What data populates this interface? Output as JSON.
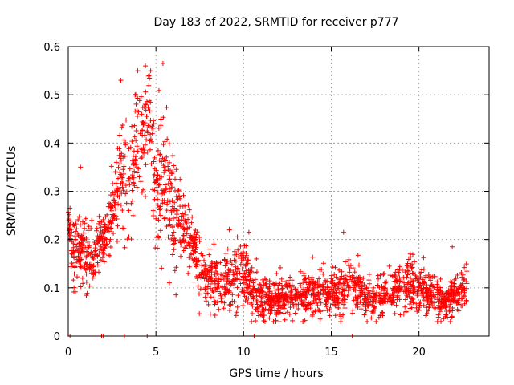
{
  "chart_data": {
    "type": "scatter",
    "title": "Day 183 of 2022, SRMTID for receiver p777",
    "xlabel": "GPS time / hours",
    "ylabel": "SRMTID / TECUs",
    "xlim": [
      0,
      24
    ],
    "ylim": [
      0,
      0.6
    ],
    "xticks": [
      0,
      5,
      10,
      15,
      20
    ],
    "yticks": [
      0,
      0.1,
      0.2,
      0.3,
      0.4,
      0.5,
      0.6
    ],
    "xtick_labels": [
      "0",
      "5",
      "10",
      "15",
      "20"
    ],
    "ytick_labels": [
      "0",
      "0.1",
      "0.2",
      "0.3",
      "0.4",
      "0.5",
      "0.6"
    ],
    "grid": true,
    "marker": "plus",
    "color": "#ff0000",
    "series": [
      {
        "name": "SRMTID",
        "envelope": [
          {
            "x": 0.0,
            "y": 0.25,
            "spread": 0.02
          },
          {
            "x": 0.3,
            "y": 0.16,
            "spread": 0.06
          },
          {
            "x": 0.7,
            "y": 0.18,
            "spread": 0.07
          },
          {
            "x": 1.2,
            "y": 0.15,
            "spread": 0.06
          },
          {
            "x": 1.7,
            "y": 0.19,
            "spread": 0.05
          },
          {
            "x": 2.2,
            "y": 0.21,
            "spread": 0.05
          },
          {
            "x": 2.6,
            "y": 0.25,
            "spread": 0.08
          },
          {
            "x": 3.0,
            "y": 0.36,
            "spread": 0.12
          },
          {
            "x": 3.4,
            "y": 0.3,
            "spread": 0.1
          },
          {
            "x": 3.8,
            "y": 0.38,
            "spread": 0.12
          },
          {
            "x": 4.2,
            "y": 0.42,
            "spread": 0.1
          },
          {
            "x": 4.6,
            "y": 0.45,
            "spread": 0.1
          },
          {
            "x": 5.0,
            "y": 0.3,
            "spread": 0.1
          },
          {
            "x": 5.4,
            "y": 0.32,
            "spread": 0.13
          },
          {
            "x": 5.9,
            "y": 0.27,
            "spread": 0.1
          },
          {
            "x": 6.4,
            "y": 0.22,
            "spread": 0.08
          },
          {
            "x": 7.0,
            "y": 0.2,
            "spread": 0.06
          },
          {
            "x": 7.5,
            "y": 0.13,
            "spread": 0.05
          },
          {
            "x": 8.5,
            "y": 0.11,
            "spread": 0.05
          },
          {
            "x": 9.5,
            "y": 0.12,
            "spread": 0.06
          },
          {
            "x": 10.0,
            "y": 0.13,
            "spread": 0.06
          },
          {
            "x": 10.5,
            "y": 0.09,
            "spread": 0.05
          },
          {
            "x": 11.5,
            "y": 0.08,
            "spread": 0.04
          },
          {
            "x": 13.0,
            "y": 0.08,
            "spread": 0.04
          },
          {
            "x": 14.5,
            "y": 0.09,
            "spread": 0.04
          },
          {
            "x": 15.5,
            "y": 0.09,
            "spread": 0.04
          },
          {
            "x": 16.0,
            "y": 0.11,
            "spread": 0.05
          },
          {
            "x": 17.0,
            "y": 0.08,
            "spread": 0.04
          },
          {
            "x": 18.5,
            "y": 0.09,
            "spread": 0.04
          },
          {
            "x": 19.5,
            "y": 0.11,
            "spread": 0.05
          },
          {
            "x": 20.5,
            "y": 0.09,
            "spread": 0.04
          },
          {
            "x": 21.5,
            "y": 0.07,
            "spread": 0.03
          },
          {
            "x": 22.8,
            "y": 0.1,
            "spread": 0.04
          }
        ],
        "sample_count": 2200,
        "outliers": [
          {
            "x": 4.4,
            "y": 0.56
          },
          {
            "x": 5.4,
            "y": 0.565
          },
          {
            "x": 3.0,
            "y": 0.53
          },
          {
            "x": 4.7,
            "y": 0.55
          },
          {
            "x": 0.7,
            "y": 0.35
          },
          {
            "x": 15.7,
            "y": 0.215
          },
          {
            "x": 19.5,
            "y": 0.17
          },
          {
            "x": 21.9,
            "y": 0.185
          },
          {
            "x": 10.3,
            "y": 0.215
          },
          {
            "x": 9.2,
            "y": 0.22
          },
          {
            "x": 7.3,
            "y": 0.21
          },
          {
            "x": 0.1,
            "y": 0.265
          }
        ],
        "zero_points_x": [
          0.1,
          1.9,
          2.0,
          3.2,
          4.5,
          10.6,
          16.2
        ]
      }
    ]
  }
}
